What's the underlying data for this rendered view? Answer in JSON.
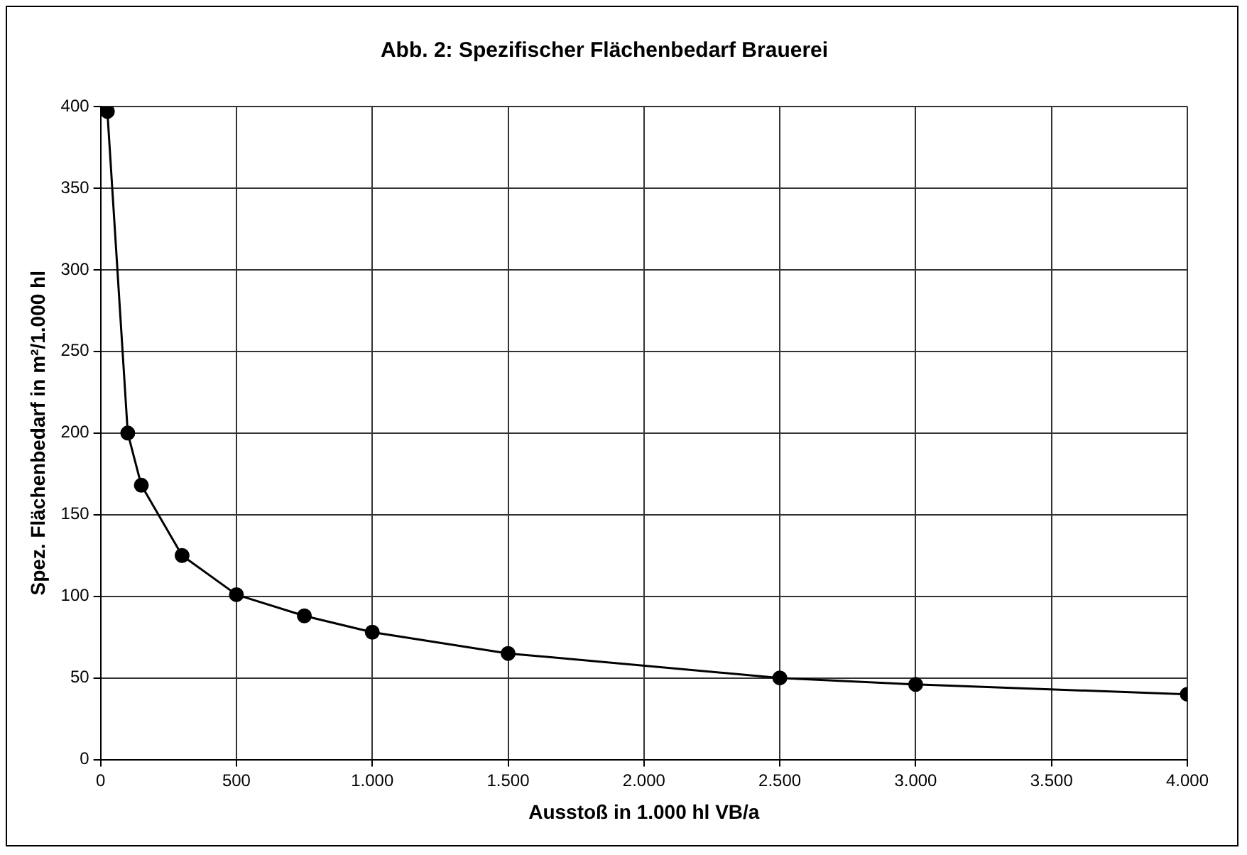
{
  "chart_data": {
    "type": "line",
    "title": "Abb. 2: Spezifischer Flächenbedarf Brauerei",
    "xlabel": "Ausstoß in 1.000 hl VB/a",
    "ylabel": "Spez. Flächenbedarf in m²/1.000 hl",
    "x": [
      25,
      100,
      150,
      300,
      500,
      750,
      1000,
      1500,
      2500,
      3000,
      4000
    ],
    "series": [
      {
        "color": "#000000",
        "values": [
          397,
          200,
          168,
          125,
          101,
          88,
          78,
          65,
          50,
          46,
          40
        ]
      }
    ],
    "xlim": [
      0,
      4000
    ],
    "xticks": [
      0,
      500,
      {
        "value": 1000,
        "label": "1.000"
      },
      {
        "value": 1500,
        "label": "1.500"
      },
      {
        "value": 2000,
        "label": "2.000"
      },
      {
        "value": 2500,
        "label": "2.500"
      },
      {
        "value": 3000,
        "label": "3.000"
      },
      {
        "value": 3500,
        "label": "3.500"
      },
      {
        "value": 4000,
        "label": "4.000"
      }
    ],
    "ylim": [
      0,
      400
    ],
    "yticks": [
      0,
      50,
      100,
      150,
      200,
      250,
      300,
      350,
      400
    ],
    "grid": true,
    "legend": false,
    "marker": "circle",
    "line_style": "solid"
  }
}
